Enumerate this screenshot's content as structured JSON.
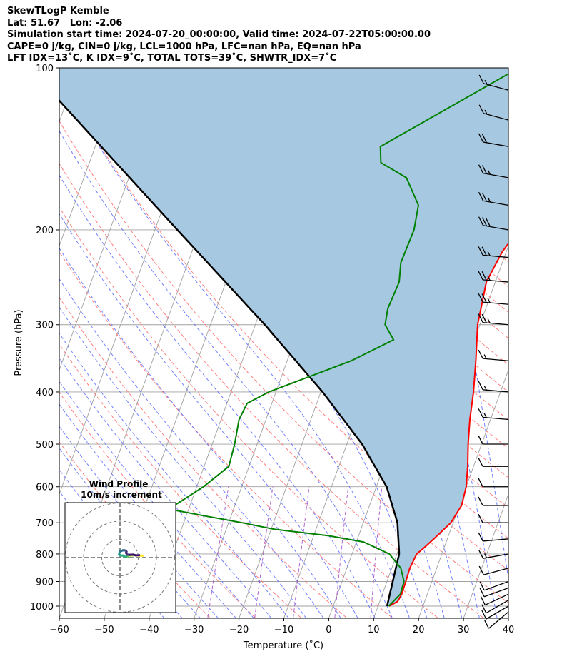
{
  "header": {
    "line1": "SkewTLogP Kemble",
    "line2": "Lat: 51.67   Lon: -2.06",
    "line3": "Simulation start time: 2024-07-20_00:00:00, Valid time: 2024-07-22T05:00:00.00",
    "line4": "CAPE=0 j/kg, CIN=0 j/kg, LCL=1000 hPa, LFC=nan hPa, EQ=nan hPa",
    "line5": "LFT IDX=13˚C, K IDX=9˚C, TOTAL TOTS=39˚C, SHWTR_IDX=7˚C"
  },
  "colors": {
    "temperature": "#ff0000",
    "dewpoint": "#008000",
    "parcel": "#000000",
    "cape_fill": "#a6c8e0",
    "dry_adiabat": "#ff6666",
    "moist_adiabat": "#5a6bff",
    "mixing_ratio": "#a040c0",
    "isotherm": "#a0a0a0"
  },
  "chart_data": {
    "type": "skew-t log-p",
    "xlabel": "Temperature (˚C)",
    "ylabel": "Pressure (hPa)",
    "xlim": [
      -60,
      40
    ],
    "ylim": [
      1050,
      100
    ],
    "x_ticks": [
      "−60",
      "−50",
      "−40",
      "−30",
      "−20",
      "−10",
      "0",
      "10",
      "20",
      "30",
      "40"
    ],
    "y_ticks": [
      "100",
      "200",
      "300",
      "400",
      "500",
      "600",
      "700",
      "800",
      "900",
      "1000"
    ],
    "y_tick_values": [
      100,
      200,
      300,
      400,
      500,
      600,
      700,
      800,
      900,
      1000
    ],
    "x_tick_values": [
      -60,
      -50,
      -40,
      -30,
      -20,
      -10,
      0,
      10,
      20,
      30,
      40
    ],
    "grid": true,
    "temperature_profile": {
      "pressure": [
        1000,
        980,
        950,
        900,
        850,
        800,
        780,
        750,
        700,
        650,
        600,
        550,
        500,
        450,
        400,
        350,
        300,
        250,
        220,
        200,
        180,
        160,
        150,
        130,
        120,
        110,
        100
      ],
      "temperature": [
        12.5,
        14,
        14.3,
        14.2,
        14,
        14.4,
        15.5,
        17,
        19.5,
        20.5,
        20,
        18.7,
        17,
        15.4,
        14,
        12,
        9.5,
        8,
        9.1,
        10.9,
        13.6,
        16.7,
        18.5,
        19.6,
        18.2,
        16.1,
        12.4
      ]
    },
    "dewpoint_profile": {
      "pressure": [
        1000,
        950,
        900,
        850,
        800,
        760,
        740,
        720,
        700,
        680,
        660,
        640,
        600,
        550,
        500,
        450,
        420,
        400,
        350,
        320,
        300,
        280,
        250,
        230,
        200,
        180,
        160,
        150,
        140,
        100
      ],
      "dewpoint": [
        12.4,
        14,
        13.8,
        12,
        8.3,
        1.6,
        -6.7,
        -19.2,
        -27,
        -35.8,
        -44.5,
        -42.5,
        -38.5,
        -34.5,
        -35,
        -36,
        -35.5,
        -31.6,
        -15.7,
        -8,
        -11.1,
        -11.8,
        -11.4,
        -12.6,
        -12.3,
        -13.3,
        -18.2,
        -25.1,
        -26.5,
        -2
      ]
    },
    "parcel_profile": {
      "pressure": [
        1000,
        800,
        700,
        600,
        500,
        400,
        300,
        200,
        100
      ],
      "temperature": [
        12,
        10.5,
        7.6,
        2.3,
        -6.6,
        -19.6,
        -37.9,
        -65,
        -111
      ]
    },
    "wind_barbs": {
      "pressure": [
        1025,
        1000,
        975,
        950,
        925,
        900,
        850,
        800,
        750,
        700,
        650,
        600,
        550,
        500,
        450,
        400,
        350,
        300,
        275,
        250,
        225,
        200,
        180,
        160,
        140,
        125,
        110
      ],
      "speed_kt": [
        10,
        10,
        10,
        10,
        10,
        10,
        10,
        15,
        10,
        10,
        10,
        10,
        10,
        10,
        15,
        15,
        15,
        25,
        25,
        25,
        25,
        30,
        25,
        25,
        20,
        15,
        15
      ],
      "direction_deg": [
        230,
        240,
        240,
        245,
        250,
        250,
        255,
        260,
        265,
        270,
        270,
        270,
        270,
        270,
        275,
        275,
        275,
        275,
        275,
        275,
        275,
        280,
        280,
        280,
        280,
        285,
        285
      ]
    },
    "hodograph": {
      "title": "Wind Profile",
      "subtitle": "10m/s increment",
      "u": [
        12.5,
        10.5,
        8.5,
        6.5,
        4.5,
        4.0,
        4.2,
        3.3,
        1.6,
        0.2,
        -0.5,
        -0.3,
        0.2,
        0.8,
        1.6,
        2.4,
        3.2,
        3.6,
        3.3,
        3.9,
        5.5,
        7.2,
        8.8,
        10.5
      ],
      "v": [
        1.1,
        1.1,
        1.3,
        1.2,
        1.1,
        1.0,
        0.4,
        0.2,
        1.1,
        1.2,
        1.7,
        2.6,
        3.5,
        3.7,
        4.0,
        4.0,
        3.8,
        3.2,
        2.6,
        1.6,
        1.5,
        1.6,
        1.2,
        1.3
      ]
    }
  }
}
